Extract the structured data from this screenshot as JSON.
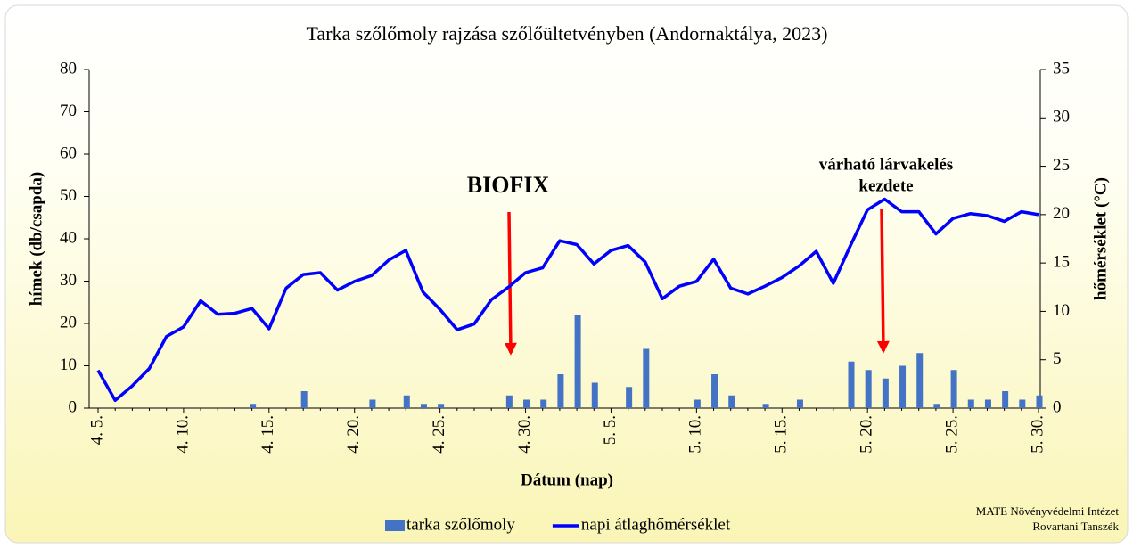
{
  "chart_data": {
    "type": "bar",
    "title": "Tarka szőlőmoly rajzása szőlőültetvényben (Andornaktálya, 2023)",
    "x_label": "Dátum (nap)",
    "y_label": "hímek (db/csapda)",
    "y2_label": "hőmérséklet (°C)",
    "categories": [
      "4. 5.",
      null,
      null,
      null,
      null,
      "4. 10.",
      null,
      null,
      null,
      null,
      "4. 15.",
      null,
      null,
      null,
      null,
      "4. 20.",
      null,
      null,
      null,
      null,
      "4. 25.",
      null,
      null,
      null,
      null,
      "4. 30.",
      null,
      null,
      null,
      null,
      "5. 5.",
      null,
      null,
      null,
      null,
      "5. 10.",
      null,
      null,
      null,
      null,
      "5. 15.",
      null,
      null,
      null,
      null,
      "5. 20.",
      null,
      null,
      null,
      null,
      "5. 25.",
      null,
      null,
      null,
      null,
      "5. 30."
    ],
    "series": [
      {
        "name": "tarka szőlőmoly",
        "type": "bar",
        "color": "#4472c4",
        "values": [
          0,
          0,
          0,
          0,
          0,
          0,
          0,
          0,
          0,
          1,
          0,
          0,
          4,
          0,
          0,
          0,
          2,
          0,
          3,
          1,
          1,
          0,
          0,
          0,
          3,
          2,
          2,
          8,
          22,
          6,
          0,
          5,
          14,
          0,
          0,
          2,
          8,
          3,
          0,
          1,
          0,
          2,
          0,
          0,
          11,
          9,
          7,
          10,
          13,
          1,
          9,
          2,
          2,
          4,
          2,
          3
        ]
      },
      {
        "name": "napi átlaghőmérséklet",
        "type": "line",
        "axis": "y2",
        "color": "#0000ff",
        "values": [
          3.9,
          0.8,
          2.3,
          4.1,
          7.4,
          8.4,
          11.1,
          9.7,
          9.8,
          10.3,
          8.2,
          12.4,
          13.8,
          14.0,
          12.2,
          13.1,
          13.7,
          15.3,
          16.3,
          12.0,
          10.2,
          8.1,
          8.7,
          11.2,
          12.5,
          14.0,
          14.5,
          17.3,
          16.9,
          14.9,
          16.3,
          16.8,
          15.1,
          11.3,
          12.6,
          13.1,
          15.4,
          12.4,
          11.8,
          12.6,
          13.5,
          14.7,
          16.2,
          12.9,
          16.8,
          20.5,
          21.6,
          20.3,
          20.3,
          18.0,
          19.6,
          20.1,
          19.9,
          19.3,
          20.3,
          20.0
        ]
      }
    ],
    "ylim": [
      0,
      80
    ],
    "yticks": [
      0,
      10,
      20,
      30,
      40,
      50,
      60,
      70,
      80
    ],
    "y2lim": [
      0,
      35
    ],
    "y2ticks": [
      0,
      5,
      10,
      15,
      20,
      25,
      30,
      35
    ],
    "annotations": [
      {
        "lines": [
          "BIOFIX"
        ],
        "color": "#ff0000"
      },
      {
        "lines": [
          "várható lárvakelés",
          "kezdete"
        ],
        "color": "#ff0000"
      }
    ],
    "source": [
      "MATE Növényvédelmi Intézet",
      "Rovartani Tanszék"
    ],
    "legend": "bottom"
  }
}
